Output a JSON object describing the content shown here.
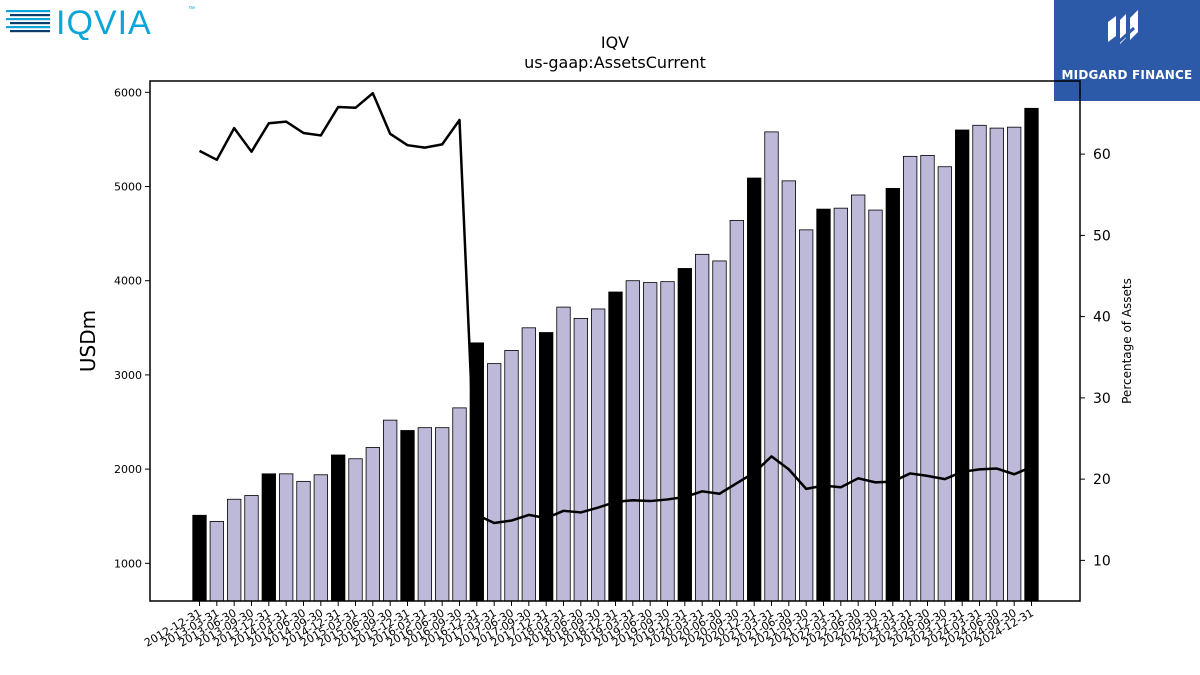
{
  "header": {
    "left_logo_text": "IQVIA",
    "left_logo_tm": "™",
    "right_logo_text": "MIDGARD FINANCE",
    "brand_colors": {
      "iqvia_blue": "#0ba5d9",
      "iqvia_navy": "#0b3c6b",
      "midgard_bg": "#2d5aa8"
    }
  },
  "chart_data": {
    "type": "bar",
    "title": "IQV",
    "subtitle": "us-gaap:AssetsCurrent",
    "ylabel": "USDm",
    "y2label": "Percentage of Assets",
    "ylim": [
      600,
      6120
    ],
    "y2lim": [
      5,
      69
    ],
    "yticks": [
      1000,
      2000,
      3000,
      4000,
      5000,
      6000
    ],
    "y2ticks": [
      10,
      20,
      30,
      40,
      50,
      60
    ],
    "colors": {
      "bar_quarter": "#bcb9d9",
      "bar_year_end": "#000000",
      "line": "#000000"
    },
    "categories": [
      "2012-12-31",
      "2013-03-31",
      "2013-06-30",
      "2013-09-30",
      "2013-12-31",
      "2014-03-31",
      "2014-06-30",
      "2014-09-30",
      "2014-12-31",
      "2015-03-31",
      "2015-06-30",
      "2015-09-30",
      "2015-12-31",
      "2016-03-31",
      "2016-06-30",
      "2016-09-30",
      "2016-12-31",
      "2017-03-31",
      "2017-06-30",
      "2017-09-30",
      "2017-12-31",
      "2018-03-31",
      "2018-06-30",
      "2018-09-30",
      "2018-12-31",
      "2019-03-31",
      "2019-06-30",
      "2019-09-30",
      "2019-12-31",
      "2020-03-31",
      "2020-06-30",
      "2020-09-30",
      "2020-12-31",
      "2021-03-31",
      "2021-06-30",
      "2021-09-30",
      "2021-12-31",
      "2022-03-31",
      "2022-06-30",
      "2022-09-30",
      "2022-12-31",
      "2023-03-31",
      "2023-06-30",
      "2023-09-30",
      "2023-12-31",
      "2024-03-31",
      "2024-06-30",
      "2024-09-30",
      "2024-12-31"
    ],
    "series": [
      {
        "values": [
          1510,
          1445,
          1680,
          1720,
          1950,
          1950,
          1870,
          1940,
          2150,
          2110,
          2230,
          2520,
          2410,
          2440,
          2440,
          2650,
          3340,
          3120,
          3260,
          3500,
          3450,
          3720,
          3600,
          3700,
          3880,
          4000,
          3980,
          3990,
          4130,
          4280,
          4210,
          4640,
          5090,
          5580,
          5060,
          4540,
          4760,
          4770,
          4910,
          4750,
          4980,
          5320,
          5330,
          5210,
          5600,
          5650,
          5620,
          5630,
          5830
        ]
      },
      {
        "values": [
          60.4,
          59.3,
          63.2,
          60.3,
          63.8,
          64.0,
          62.6,
          62.3,
          65.8,
          65.7,
          67.5,
          62.5,
          61.1,
          60.8,
          61.2,
          64.2,
          15.6,
          14.6,
          14.9,
          15.6,
          15.2,
          16.1,
          15.9,
          16.5,
          17.2,
          17.4,
          17.3,
          17.5,
          17.8,
          18.5,
          18.2,
          19.5,
          20.8,
          22.8,
          21.2,
          18.8,
          19.2,
          19.0,
          20.1,
          19.6,
          19.7,
          20.7,
          20.4,
          20.0,
          20.9,
          21.2,
          21.3,
          20.6,
          21.5
        ]
      }
    ]
  }
}
